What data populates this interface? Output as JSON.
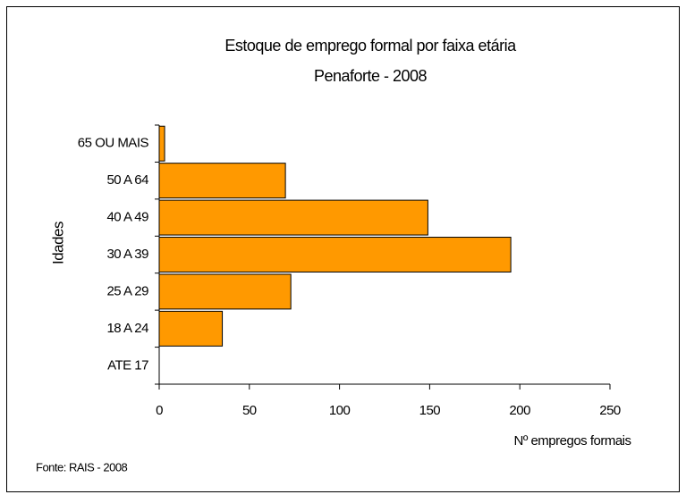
{
  "chart_data": {
    "type": "barh",
    "title": "Estoque de emprego formal por faixa etária",
    "subtitle": "Penaforte - 2008",
    "categories": [
      "65 OU MAIS",
      "50 A 64",
      "40 A 49",
      "30 A 39",
      "25 A 29",
      "18 A 24",
      "ATE 17"
    ],
    "values": [
      3,
      70,
      149,
      195,
      73,
      35,
      0
    ],
    "color": "#ff9900",
    "xlim": [
      0,
      250
    ],
    "xticks": [
      0,
      50,
      100,
      150,
      200,
      250
    ],
    "xlabel": "Nº empregos formais",
    "ylabel": "Idades",
    "source": "Fonte: RAIS - 2008"
  }
}
